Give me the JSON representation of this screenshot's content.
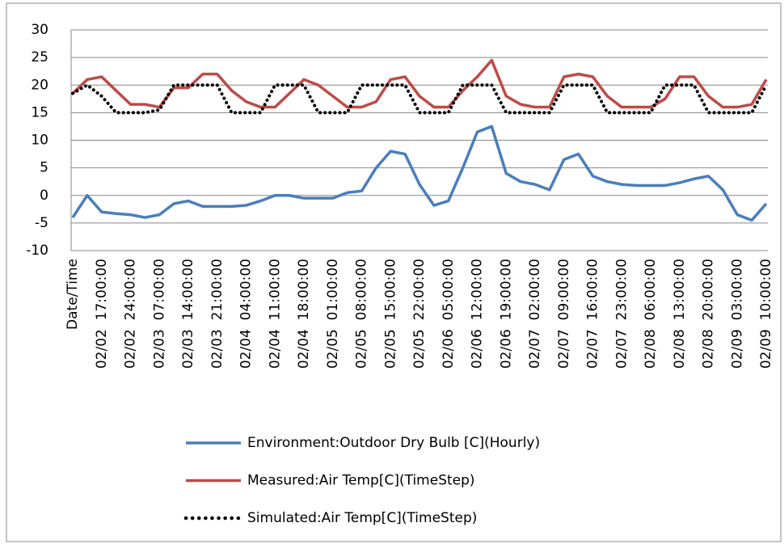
{
  "chart_data": {
    "type": "line",
    "categories": [
      "Date/Time",
      null,
      "02/02  17:00:00",
      null,
      "02/02  24:00:00",
      null,
      "02/03  07:00:00",
      null,
      "02/03  14:00:00",
      null,
      "02/03  21:00:00",
      null,
      "02/04  04:00:00",
      null,
      "02/04  11:00:00",
      null,
      "02/04  18:00:00",
      null,
      "02/05  01:00:00",
      null,
      "02/05  08:00:00",
      null,
      "02/05  15:00:00",
      null,
      "02/05  22:00:00",
      null,
      "02/06  05:00:00",
      null,
      "02/06  12:00:00",
      null,
      "02/06  19:00:00",
      null,
      "02/07  02:00:00",
      null,
      "02/07  09:00:00",
      null,
      "02/07  16:00:00",
      null,
      "02/07  23:00:00",
      null,
      "02/08  06:00:00",
      null,
      "02/08  13:00:00",
      null,
      "02/08  20:00:00",
      null,
      "02/09  03:00:00",
      null,
      "02/09  10:00:00"
    ],
    "series": [
      {
        "name": "Environment:Outdoor Dry Bulb [C](Hourly)",
        "color": "#4a7ebb",
        "style": "solid",
        "values": [
          -4,
          0,
          -3,
          -3.3,
          -3.5,
          -4,
          -3.5,
          -1.5,
          -1,
          -2,
          -2,
          -2,
          -1.8,
          -1,
          0,
          0,
          -0.5,
          -0.5,
          -0.5,
          0.5,
          0.8,
          5,
          8,
          7.5,
          2,
          -1.8,
          -1,
          5,
          11.5,
          12.5,
          4,
          2.5,
          2,
          1,
          6.5,
          7.5,
          3.5,
          2.5,
          2,
          1.8,
          1.8,
          1.8,
          2.3,
          3,
          3.5,
          1,
          -3.5,
          -4.5,
          -1.5
        ]
      },
      {
        "name": "Measured:Air Temp[C](TimeStep)",
        "color": "#be4b48",
        "style": "solid",
        "values": [
          18.5,
          21,
          21.5,
          19,
          16.5,
          16.5,
          16,
          19.5,
          19.5,
          22,
          22,
          19,
          17,
          16,
          16,
          18.5,
          21,
          20,
          18,
          16,
          16,
          17,
          21,
          21.5,
          18,
          16,
          16,
          19,
          21.5,
          24.5,
          18,
          16.5,
          16,
          16,
          21.5,
          22,
          21.5,
          18,
          16,
          16,
          16,
          17.5,
          21.5,
          21.5,
          18,
          16,
          16,
          16.5,
          21
        ]
      },
      {
        "name": "Simulated:Air Temp[C](TimeStep)",
        "color": "#000000",
        "style": "dotted",
        "values": [
          18.5,
          20,
          18,
          15,
          15,
          15,
          15.5,
          20,
          20,
          20,
          20,
          15,
          15,
          15,
          20,
          20,
          20,
          15,
          15,
          15,
          20,
          20,
          20,
          20,
          15,
          15,
          15,
          20,
          20,
          20,
          15,
          15,
          15,
          15,
          20,
          20,
          20,
          15,
          15,
          15,
          15,
          20,
          20,
          20,
          15,
          15,
          15,
          15,
          20
        ]
      }
    ],
    "ylim": [
      -10,
      30
    ],
    "yticks": [
      -10,
      -5,
      0,
      5,
      10,
      15,
      20,
      25,
      30
    ],
    "grid": true,
    "legend": "bottom"
  }
}
